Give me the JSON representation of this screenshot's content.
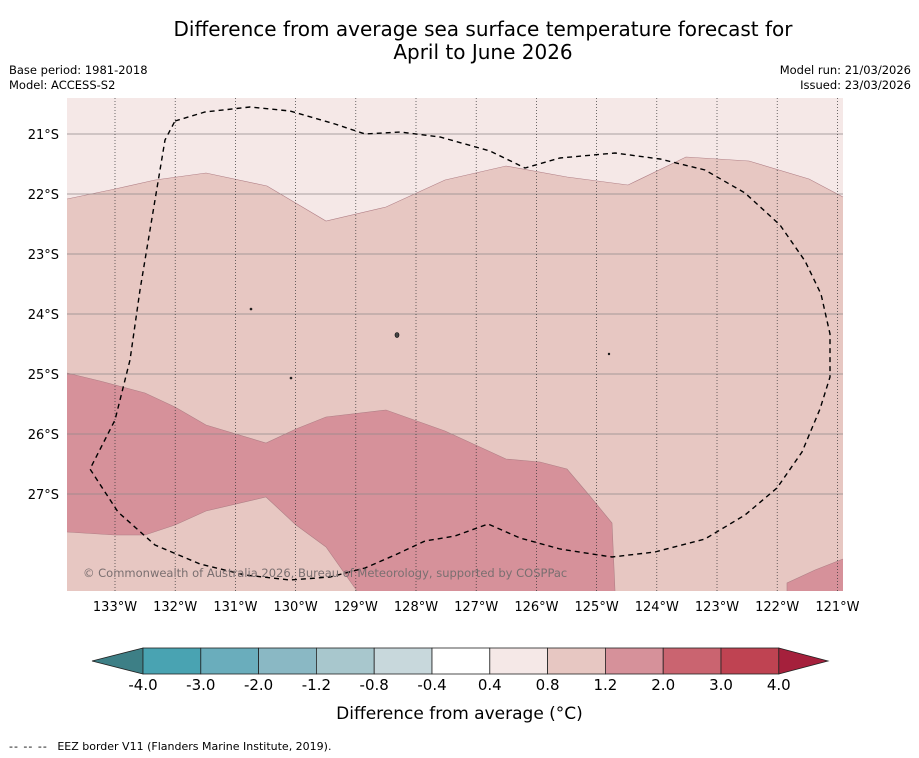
{
  "title_line1": "Difference from average sea surface temperature forecast for",
  "title_line2": "April to June 2026",
  "meta_left": {
    "base_period": "Base period: 1981-2018",
    "model": "Model: ACCESS-S2"
  },
  "meta_right": {
    "model_run": "Model run: 21/03/2026",
    "issued": "Issued: 23/03/2026"
  },
  "map": {
    "lat_labels": [
      "21°S",
      "22°S",
      "23°S",
      "24°S",
      "25°S",
      "26°S",
      "27°S"
    ],
    "lon_labels": [
      "133°W",
      "132°W",
      "131°W",
      "130°W",
      "129°W",
      "128°W",
      "127°W",
      "126°W",
      "125°W",
      "124°W",
      "123°W",
      "122°W",
      "121°W"
    ],
    "copyright": "© Commonwealth of Australia 2026, Bureau of Meteorology, supported by COSPPac"
  },
  "colorbar": {
    "labels": [
      "-4.0",
      "-3.0",
      "-2.0",
      "-1.2",
      "-0.8",
      "-0.4",
      "0.4",
      "0.8",
      "1.2",
      "2.0",
      "3.0",
      "4.0"
    ],
    "colors": [
      "#49a3b2",
      "#6aadbc",
      "#8ab8c4",
      "#a8c7cd",
      "#c8d8dc",
      "#ffffff",
      "#f5e8e7",
      "#e7c7c2",
      "#d6919a",
      "#ca6470",
      "#bf4352"
    ],
    "extend_low_color": "#3d7f86",
    "extend_high_color": "#a5203c",
    "title": "Difference from average (°C)"
  },
  "map_colors": {
    "band_0_4_0_8": "#f5e8e7",
    "band_0_8_1_2": "#e7c7c2",
    "band_1_2_2_0": "#d6919a"
  },
  "footnote": {
    "dashes": "-- -- --",
    "text": "EEZ border V11 (Flanders Marine Institute, 2019)."
  }
}
